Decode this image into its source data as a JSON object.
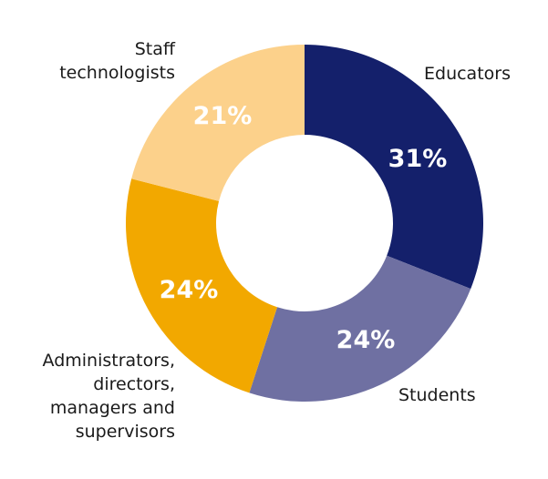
{
  "chart_data": {
    "type": "pie",
    "subtype": "donut",
    "title": "",
    "categories": [
      "Educators",
      "Students",
      "Administrators, directors, managers and supervisors",
      "Staff technologists"
    ],
    "values": [
      31,
      24,
      24,
      21
    ],
    "unit": "%",
    "colors": [
      "#14206b",
      "#6f70a2",
      "#f2a800",
      "#fcd18b"
    ],
    "start_angle_deg": 0,
    "direction": "clockwise",
    "legend": "none (direct labels)",
    "slices": [
      {
        "name": "Educators",
        "value": 31,
        "pct_label": "31%",
        "color": "#14206b",
        "label_lines": [
          "Educators"
        ]
      },
      {
        "name": "Students",
        "value": 24,
        "pct_label": "24%",
        "color": "#6f70a2",
        "label_lines": [
          "Students"
        ]
      },
      {
        "name": "Administrators, directors, managers and supervisors",
        "value": 24,
        "pct_label": "24%",
        "color": "#f2a800",
        "label_lines": [
          "Administrators,",
          "directors,",
          "managers and",
          "supervisors"
        ]
      },
      {
        "name": "Staff technologists",
        "value": 21,
        "pct_label": "21%",
        "color": "#fcd18b",
        "label_lines": [
          "Staff",
          "technologists"
        ]
      }
    ]
  }
}
